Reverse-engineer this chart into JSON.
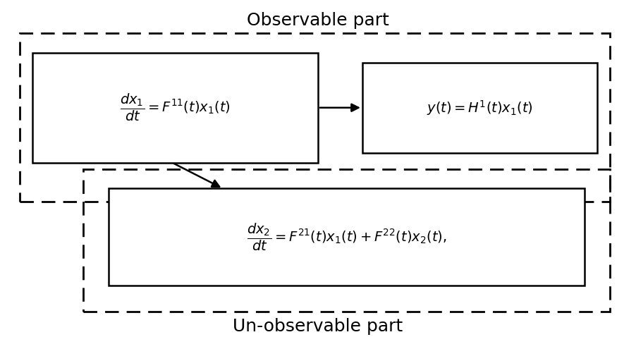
{
  "title_observable": "Observable part",
  "title_unobservable": "Un-observable part",
  "eq1": "$\\dfrac{dx_1}{dt} = F^{11}(t)x_1(t)$",
  "eq2": "$y(t) = H^1(t)x_1(t)$",
  "eq3": "$\\dfrac{dx_2}{dt} = F^{21}(t)x_1(t) + F^{22}(t)x_2(t),$",
  "bg_color": "#ffffff",
  "box_color": "#000000",
  "text_color": "#000000",
  "fontsize_title": 18,
  "fontsize_eq": 14
}
